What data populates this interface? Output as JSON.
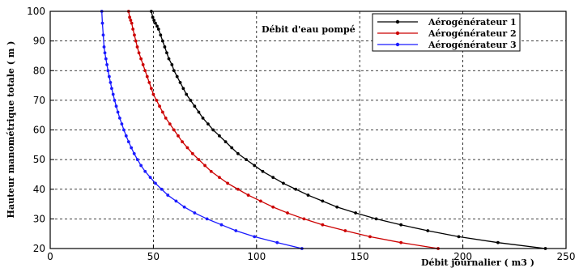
{
  "chart_data": {
    "type": "line",
    "title": "",
    "annotation": "Débit d'eau pompé",
    "xlabel": "Débit journalier ( m3 )",
    "ylabel": "Hauteur manométrique totale ( m )",
    "xlim": [
      0,
      250
    ],
    "ylim": [
      20,
      100
    ],
    "xticks": [
      0,
      50,
      100,
      150,
      200,
      250
    ],
    "yticks": [
      20,
      30,
      40,
      50,
      60,
      70,
      80,
      90,
      100
    ],
    "grid": true,
    "grid_style": "dashed",
    "legend_position": "top-right",
    "series": [
      {
        "name": "Aérogénérateur 1",
        "color": "#000000",
        "x": [
          240,
          217,
          198,
          183,
          170,
          158,
          148,
          139,
          132,
          125,
          119,
          113,
          108,
          103,
          99,
          95,
          91,
          88,
          85,
          82,
          79,
          76.5,
          74,
          72,
          70,
          68,
          66,
          64.5,
          63,
          61.5,
          60,
          59,
          57.5,
          56.5,
          55.5,
          54.5,
          53.5,
          52.5,
          51.8,
          51,
          50.3,
          49.7,
          49
        ],
        "y": [
          20,
          22,
          24,
          26,
          28,
          30,
          32,
          34,
          36,
          38,
          40,
          42,
          44,
          46,
          48,
          50,
          52,
          54,
          56,
          58,
          60,
          62,
          64,
          66,
          68,
          70,
          72,
          74,
          76,
          78,
          80,
          82,
          84,
          86,
          88,
          90,
          92,
          94,
          95,
          96,
          97,
          98,
          100
        ]
      },
      {
        "name": "Aérogénérateur 2",
        "color": "#cc0000",
        "x": [
          188,
          170,
          155,
          143,
          132,
          123,
          115,
          108,
          102,
          96,
          91,
          86,
          82,
          78,
          75,
          72,
          69,
          66.5,
          64,
          62,
          60,
          58,
          56,
          54.5,
          53,
          51.5,
          50,
          49,
          48,
          47,
          46,
          45,
          44,
          43,
          42.2,
          41.5,
          40.8,
          40.1,
          39.5,
          39,
          38.5,
          38
        ],
        "y": [
          20,
          22,
          24,
          26,
          28,
          30,
          32,
          34,
          36,
          38,
          40,
          42,
          44,
          46,
          48,
          50,
          52,
          54,
          56,
          58,
          60,
          62,
          64,
          66,
          68,
          70,
          72,
          74,
          76,
          78,
          80,
          82,
          84,
          86,
          88,
          90,
          92,
          94,
          96,
          97,
          98,
          100
        ]
      },
      {
        "name": "Aérogénérateur 3",
        "color": "#1a1aff",
        "x": [
          122,
          110,
          99,
          90,
          83,
          76,
          70,
          65,
          61,
          57,
          54,
          51,
          48.5,
          46,
          44,
          42.3,
          40.7,
          39.3,
          38,
          36.8,
          35.7,
          34.7,
          33.7,
          32.8,
          32,
          31.2,
          30.5,
          29.8,
          29.2,
          28.6,
          28,
          27.5,
          27,
          26.5,
          26.1,
          25.7,
          25.3,
          25
        ],
        "y": [
          20,
          22,
          24,
          26,
          28,
          30,
          32,
          34,
          36,
          38,
          40,
          42,
          44,
          46,
          48,
          50,
          52,
          54,
          56,
          58,
          60,
          62,
          64,
          66,
          68,
          70,
          72,
          74,
          76,
          78,
          80,
          82,
          84,
          86,
          88,
          92,
          96,
          100
        ]
      }
    ]
  }
}
